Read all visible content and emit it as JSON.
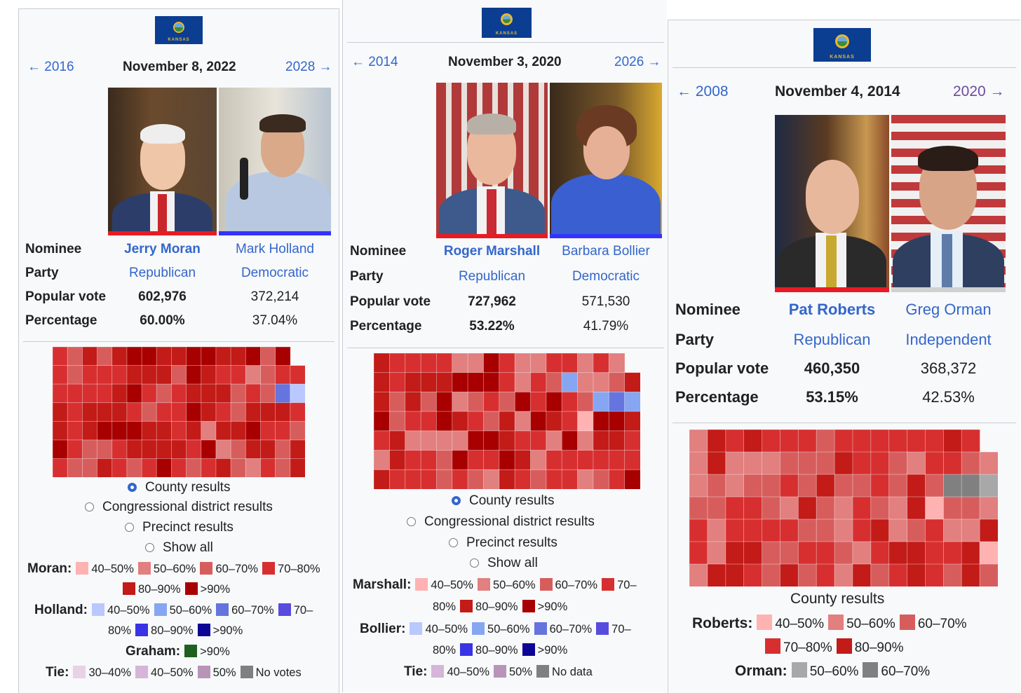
{
  "colors": {
    "rep_bar": "#e81b23",
    "dem_bar": "#3333ff",
    "ind_bar": "#d0d0d0",
    "r40": "#ffb2b2",
    "r50": "#e27f7f",
    "r60": "#d75d5d",
    "r70": "#d72f30",
    "r80": "#c21b18",
    "r90": "#a80000",
    "d40": "#b9c8ff",
    "d50": "#86a6f2",
    "d60": "#6674de",
    "d70": "#584cde",
    "d80": "#3933e5",
    "d90": "#0d0596",
    "g90": "#1f5f1f",
    "t30": "#e6d3e8",
    "t40": "#d5b5d8",
    "t50": "#b994b9",
    "gray50": "#a8a8a8",
    "gray60": "#808080",
    "novote": "#808080"
  },
  "panels": [
    {
      "flag_name": "KANSAS",
      "prev": "← 2016",
      "date": "November 8, 2022",
      "next": "2028 →",
      "labels": {
        "nominee": "Nominee",
        "party": "Party",
        "vote": "Popular vote",
        "pct": "Percentage"
      },
      "cand1": {
        "name": "Jerry Moran",
        "party": "Republican",
        "vote": "602,976",
        "pct": "60.00%"
      },
      "cand2": {
        "name": "Mark Holland",
        "party": "Democratic",
        "vote": "372,214",
        "pct": "37.04%"
      },
      "radios": [
        "County results",
        "Congressional district results",
        "Precinct results",
        "Show all"
      ],
      "legend": {
        "a_name": "Moran:",
        "a1": [
          "40–50%",
          "50–60%",
          "60–70%",
          "70–80%"
        ],
        "a2": [
          "80–90%",
          ">90%"
        ],
        "b_name": "Holland:",
        "b1": [
          "40–50%",
          "50–60%",
          "60–70%",
          "70–"
        ],
        "b2_pre": "80%",
        "b2": [
          "80–90%",
          ">90%"
        ],
        "g_name": "Graham:",
        "g1": ">90%",
        "t_name": "Tie:",
        "t": [
          "30–40%",
          "40–50%",
          "50%",
          "No votes"
        ]
      }
    },
    {
      "flag_name": "KANSAS",
      "prev": "← 2014",
      "date": "November 3, 2020",
      "next": "2026 →",
      "labels": {
        "nominee": "Nominee",
        "party": "Party",
        "vote": "Popular vote",
        "pct": "Percentage"
      },
      "cand1": {
        "name": "Roger Marshall",
        "party": "Republican",
        "vote": "727,962",
        "pct": "53.22%"
      },
      "cand2": {
        "name": "Barbara Bollier",
        "party": "Democratic",
        "vote": "571,530",
        "pct": "41.79%"
      },
      "radios": [
        "County results",
        "Congressional district results",
        "Precinct results",
        "Show all"
      ],
      "legend": {
        "a_name": "Marshall:",
        "a1": [
          "40–50%",
          "50–60%",
          "60–70%",
          "70–"
        ],
        "a2_pre": "80%",
        "a2": [
          "80–90%",
          ">90%"
        ],
        "b_name": "Bollier:",
        "b1": [
          "40–50%",
          "50–60%",
          "60–70%",
          "70–"
        ],
        "b2_pre": "80%",
        "b2": [
          "80–90%",
          ">90%"
        ],
        "t_name": "Tie:",
        "t": [
          "40–50%",
          "50%",
          "No data"
        ]
      }
    },
    {
      "flag_name": "KANSAS",
      "prev": "← 2008",
      "date": "November 4, 2014",
      "next": "2020 →",
      "labels": {
        "nominee": "Nominee",
        "party": "Party",
        "vote": "Popular vote",
        "pct": "Percentage"
      },
      "cand1": {
        "name": "Pat Roberts",
        "party": "Republican",
        "vote": "460,350",
        "pct": "53.15%"
      },
      "cand2": {
        "name": "Greg Orman",
        "party": "Independent",
        "vote": "368,372",
        "pct": "42.53%"
      },
      "caption": "County results",
      "legend": {
        "a_name": "Roberts:",
        "a1": [
          "40–50%",
          "50–60%",
          "60–70%"
        ],
        "a2": [
          "70–80%",
          "80–90%"
        ],
        "b_name": "Orman:",
        "b1": [
          "50–60%",
          "60–70%"
        ]
      }
    }
  ]
}
